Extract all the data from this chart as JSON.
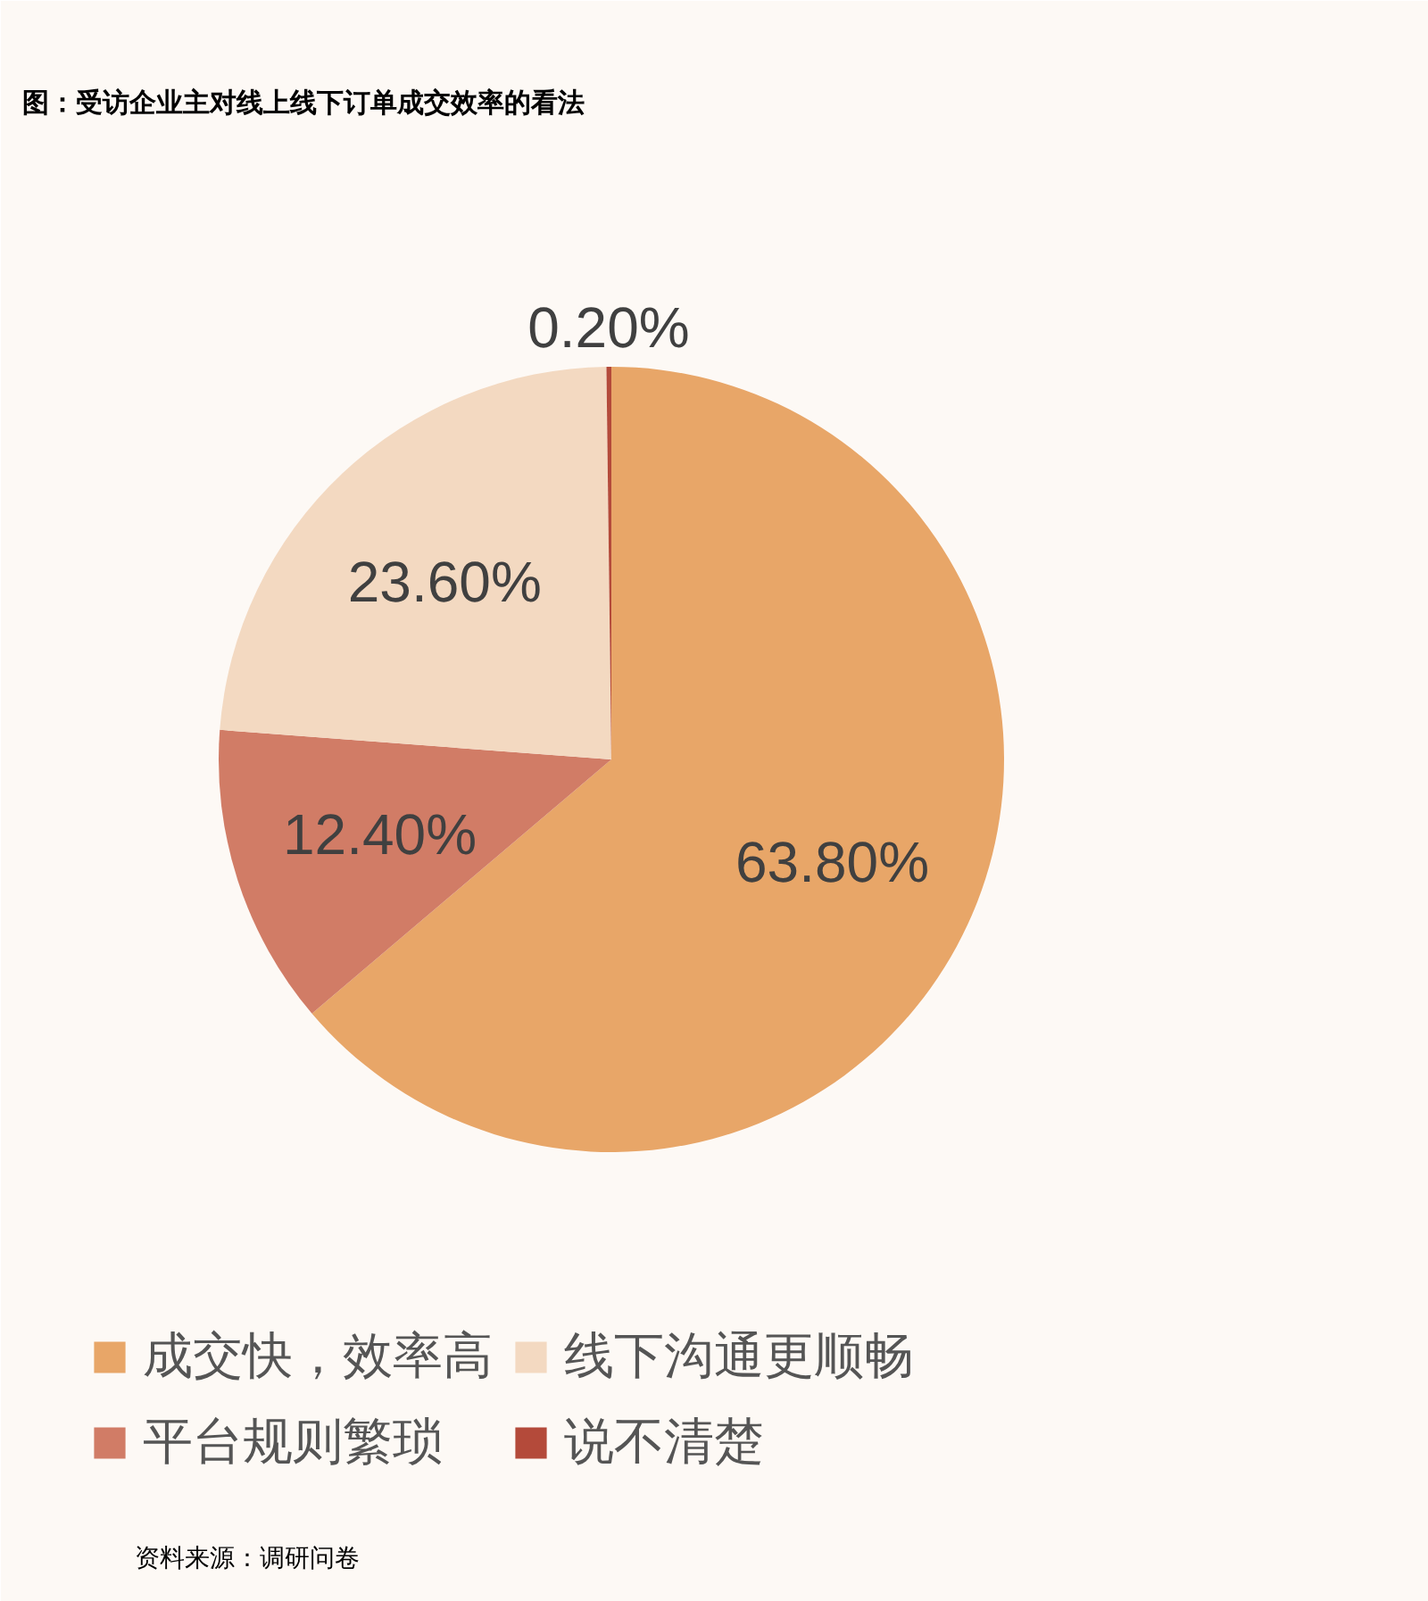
{
  "chart_data": {
    "type": "pie",
    "title": "图：受访企业主对线上线下订单成交效率的看法",
    "categories": [
      "成交快，效率高",
      "平台规则繁琐",
      "线下沟通更顺畅",
      "说不清楚"
    ],
    "values": [
      63.8,
      12.4,
      23.6,
      0.2
    ],
    "colors": [
      "#e8a668",
      "#d17c66",
      "#f3d9c1",
      "#b44a3a"
    ],
    "value_labels": [
      "63.80%",
      "12.40%",
      "23.60%",
      "0.20%"
    ],
    "legend": "bottom",
    "annotations": [
      "资料来源：调研问卷"
    ]
  }
}
